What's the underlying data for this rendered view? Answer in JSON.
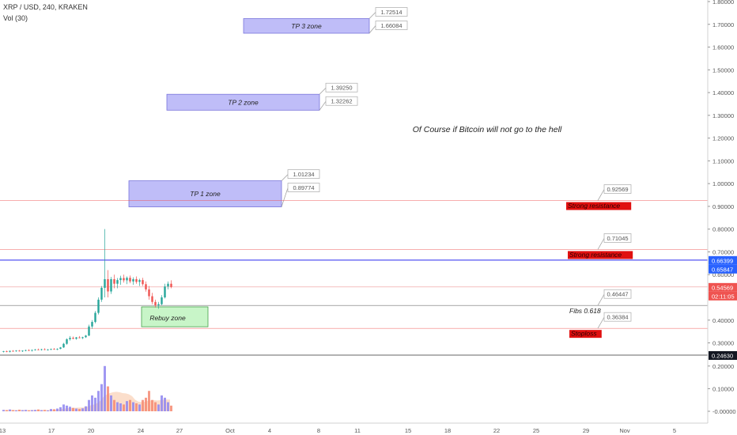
{
  "header": {
    "symbol": "XRP / USD, 240, KRAKEN",
    "volume": "Vol (30)"
  },
  "chart_data": {
    "type": "candlestick",
    "y_range": [
      0.21,
      1.81
    ],
    "y_ticks": [
      "1.80000",
      "1.70000",
      "1.60000",
      "1.50000",
      "1.40000",
      "1.30000",
      "1.20000",
      "1.10000",
      "1.00000",
      "0.90000",
      "0.80000",
      "0.70000",
      "0.60000",
      "0.40000",
      "0.30000"
    ],
    "vol_ticks": [
      "0.20000",
      "0.10000",
      "-0.00000"
    ],
    "x_labels": [
      "13",
      "17",
      "20",
      "24",
      "27",
      "Oct",
      "4",
      "8",
      "11",
      "15",
      "18",
      "22",
      "25",
      "29",
      "Nov",
      "5"
    ],
    "price_tags": [
      {
        "text": "0.66399",
        "bg": "#2962ff",
        "fg": "#ffffff"
      },
      {
        "text": "0.65847",
        "bg": "#2962ff",
        "fg": "#ffffff"
      },
      {
        "text": "0.54569",
        "bg": "#ef5350",
        "fg": "#ffffff"
      },
      {
        "text": "02:11:05",
        "bg": "#ef5350",
        "fg": "#ffffff"
      },
      {
        "text": "0.24630",
        "bg": "#131722",
        "fg": "#ffffff"
      }
    ],
    "zones": [
      {
        "label": "TP 3 zone",
        "y_low": 1.66084,
        "y_high": 1.72514,
        "top_tag": "1.72514",
        "bottom_tag": "1.66084"
      },
      {
        "label": "TP 2 zone",
        "y_low": 1.32262,
        "y_high": 1.3925,
        "top_tag": "1.39250",
        "bottom_tag": "1.32262"
      },
      {
        "label": "TP 1 zone",
        "y_low": 0.89774,
        "y_high": 1.01234,
        "top_tag": "1.01234",
        "bottom_tag": "0.89774"
      }
    ],
    "rebuy_zone": {
      "label": "Rebuy zone",
      "y_low": 0.3708,
      "y_high": 0.4583
    },
    "levels": [
      {
        "value": 0.92569,
        "tag": "0.92569",
        "label": "Strong resistance",
        "color": "#ef5350"
      },
      {
        "value": 0.71045,
        "tag": "0.71045",
        "label": "Strong resistance",
        "color": "#ef5350"
      },
      {
        "value": 0.46447,
        "tag": "0.46447",
        "label": "Fibs 0.618",
        "color": "#000000"
      },
      {
        "value": 0.36384,
        "tag": "0.36384",
        "label": "Stoploss",
        "color": "#ef5350"
      }
    ],
    "note": "Of Course if Bitcoin will not go to the hell",
    "candles": [
      [
        0.262,
        0.265,
        0.258,
        0.263
      ],
      [
        0.263,
        0.266,
        0.259,
        0.261
      ],
      [
        0.261,
        0.266,
        0.258,
        0.265
      ],
      [
        0.265,
        0.268,
        0.261,
        0.264
      ],
      [
        0.264,
        0.268,
        0.261,
        0.266
      ],
      [
        0.266,
        0.269,
        0.262,
        0.263
      ],
      [
        0.263,
        0.267,
        0.26,
        0.266
      ],
      [
        0.266,
        0.27,
        0.263,
        0.268
      ],
      [
        0.268,
        0.272,
        0.264,
        0.266
      ],
      [
        0.266,
        0.27,
        0.262,
        0.269
      ],
      [
        0.269,
        0.273,
        0.266,
        0.271
      ],
      [
        0.271,
        0.275,
        0.268,
        0.27
      ],
      [
        0.27,
        0.274,
        0.266,
        0.272
      ],
      [
        0.272,
        0.276,
        0.268,
        0.27
      ],
      [
        0.27,
        0.273,
        0.266,
        0.271
      ],
      [
        0.271,
        0.275,
        0.268,
        0.273
      ],
      [
        0.273,
        0.277,
        0.27,
        0.272
      ],
      [
        0.272,
        0.276,
        0.268,
        0.274
      ],
      [
        0.274,
        0.282,
        0.272,
        0.28
      ],
      [
        0.28,
        0.3,
        0.278,
        0.296
      ],
      [
        0.296,
        0.32,
        0.292,
        0.316
      ],
      [
        0.316,
        0.33,
        0.31,
        0.322
      ],
      [
        0.322,
        0.328,
        0.316,
        0.318
      ],
      [
        0.318,
        0.326,
        0.314,
        0.324
      ],
      [
        0.324,
        0.33,
        0.32,
        0.321
      ],
      [
        0.321,
        0.327,
        0.317,
        0.325
      ],
      [
        0.325,
        0.335,
        0.322,
        0.332
      ],
      [
        0.332,
        0.38,
        0.33,
        0.372
      ],
      [
        0.372,
        0.4,
        0.362,
        0.392
      ],
      [
        0.392,
        0.44,
        0.386,
        0.432
      ],
      [
        0.432,
        0.5,
        0.425,
        0.49
      ],
      [
        0.49,
        0.55,
        0.48,
        0.542
      ],
      [
        0.542,
        0.8,
        0.5,
        0.58
      ],
      [
        0.58,
        0.62,
        0.5,
        0.526
      ],
      [
        0.526,
        0.59,
        0.515,
        0.58
      ],
      [
        0.58,
        0.6,
        0.54,
        0.56
      ],
      [
        0.56,
        0.585,
        0.54,
        0.576
      ],
      [
        0.576,
        0.595,
        0.555,
        0.585
      ],
      [
        0.585,
        0.6,
        0.565,
        0.575
      ],
      [
        0.575,
        0.592,
        0.558,
        0.586
      ],
      [
        0.586,
        0.596,
        0.562,
        0.57
      ],
      [
        0.57,
        0.588,
        0.555,
        0.58
      ],
      [
        0.58,
        0.592,
        0.56,
        0.568
      ],
      [
        0.568,
        0.582,
        0.55,
        0.576
      ],
      [
        0.576,
        0.586,
        0.55,
        0.558
      ],
      [
        0.558,
        0.57,
        0.525,
        0.535
      ],
      [
        0.535,
        0.55,
        0.49,
        0.505
      ],
      [
        0.505,
        0.52,
        0.47,
        0.48
      ],
      [
        0.48,
        0.49,
        0.455,
        0.465
      ],
      [
        0.465,
        0.48,
        0.45,
        0.47
      ],
      [
        0.47,
        0.51,
        0.465,
        0.5
      ],
      [
        0.5,
        0.56,
        0.495,
        0.548
      ],
      [
        0.548,
        0.57,
        0.535,
        0.56
      ],
      [
        0.56,
        0.575,
        0.54,
        0.546
      ]
    ],
    "volumes": [
      0.006,
      0.005,
      0.008,
      0.005,
      0.004,
      0.007,
      0.005,
      0.006,
      0.004,
      0.005,
      0.006,
      0.008,
      0.005,
      0.006,
      0.004,
      0.01,
      0.009,
      0.012,
      0.018,
      0.03,
      0.025,
      0.02,
      0.015,
      0.012,
      0.01,
      0.013,
      0.022,
      0.05,
      0.07,
      0.06,
      0.09,
      0.12,
      0.2,
      0.11,
      0.07,
      0.05,
      0.04,
      0.035,
      0.03,
      0.045,
      0.05,
      0.04,
      0.035,
      0.03,
      0.05,
      0.06,
      0.09,
      0.05,
      0.04,
      0.03,
      0.07,
      0.06,
      0.04,
      0.025
    ]
  }
}
